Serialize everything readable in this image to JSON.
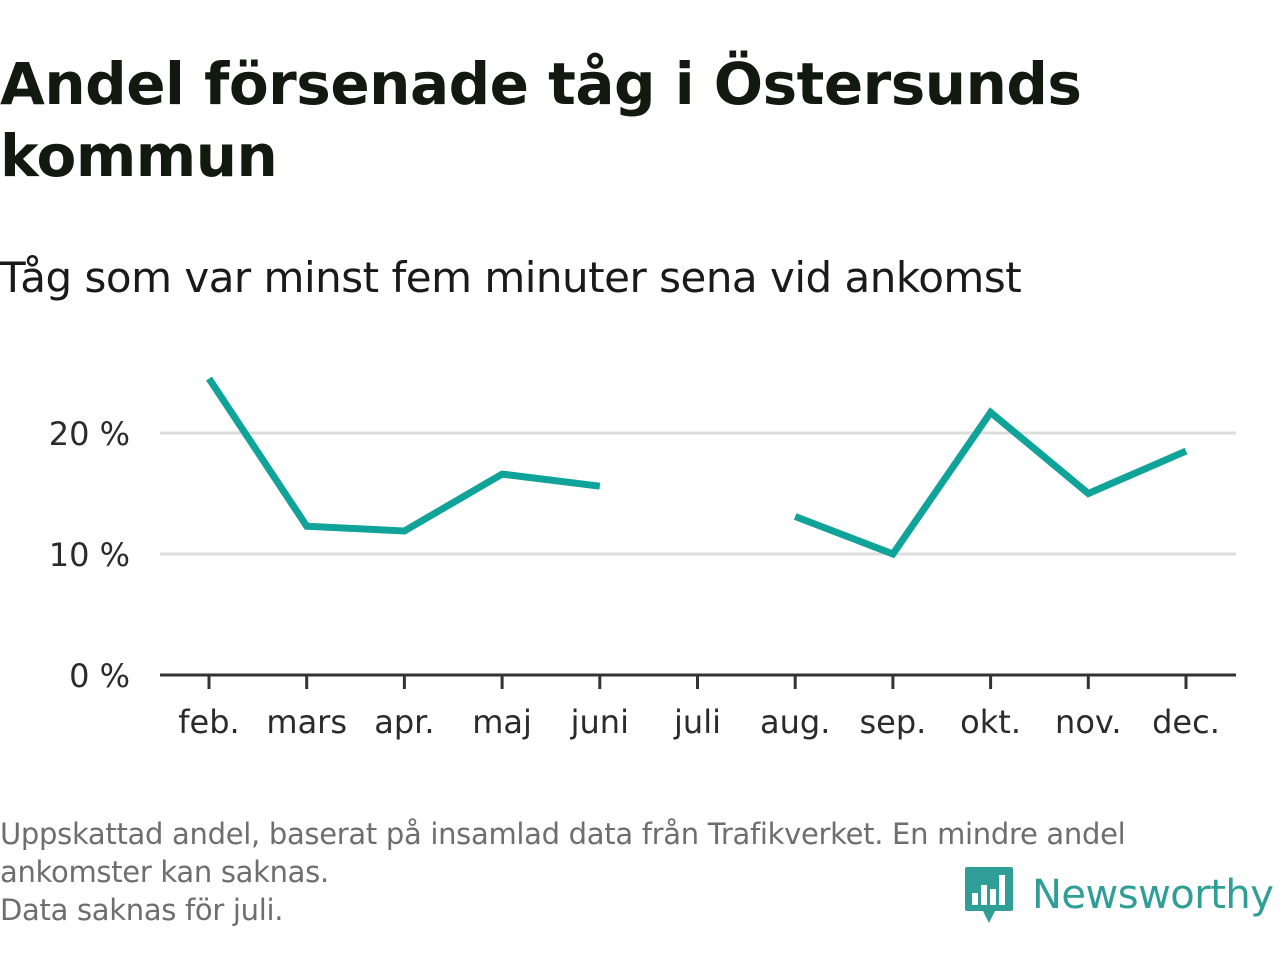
{
  "title": "Andel försenade tåg i Östersunds kommun",
  "subtitle": "Tåg som var minst fem minuter sena vid ankomst",
  "notes": {
    "line1": "Uppskattad andel, baserat på insamlad data från Trafikverket. En mindre andel ankomster kan saknas.",
    "line2": "Data saknas för juli."
  },
  "brand": {
    "name": "Newsworthy",
    "icon": "newsworthy-logo-icon",
    "color": "#2e9e96"
  },
  "chart_data": {
    "type": "line",
    "title": "Andel försenade tåg i Östersunds kommun",
    "subtitle": "Tåg som var minst fem minuter sena vid ankomst",
    "categories": [
      "feb.",
      "mars",
      "apr.",
      "maj",
      "juni",
      "juli",
      "aug.",
      "sep.",
      "okt.",
      "nov.",
      "dec."
    ],
    "series": [
      {
        "values": [
          24.5,
          12.3,
          11.9,
          16.6,
          15.6,
          null,
          13.1,
          10.0,
          21.7,
          15.0,
          18.5
        ],
        "color": "#10a39a"
      }
    ],
    "y_ticks": [
      0,
      10,
      20
    ],
    "y_tick_labels": [
      "0 %",
      "10 %",
      "20 %"
    ],
    "ylim": [
      0,
      25
    ],
    "grid": true,
    "xlabel": "",
    "ylabel": ""
  }
}
